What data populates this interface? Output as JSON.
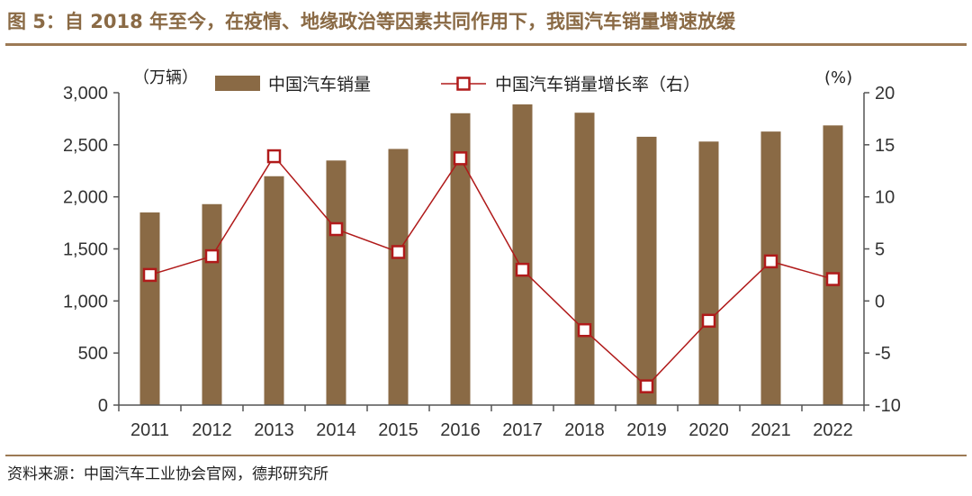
{
  "figure": {
    "title": "图 5：自 2018 年至今，在疫情、地缘政治等因素共同作用下，我国汽车销量增速放缓",
    "source": "资料来源：中国汽车工业协会官网，德邦研究所"
  },
  "colors": {
    "bar": "#8a6a45",
    "line": "#b01a1a",
    "marker_fill": "#ffffff",
    "axis": "#555555",
    "rule": "#9c7a55"
  },
  "chart_data": {
    "type": "bar",
    "categories": [
      "2011",
      "2012",
      "2013",
      "2014",
      "2015",
      "2016",
      "2017",
      "2018",
      "2019",
      "2020",
      "2021",
      "2022"
    ],
    "series": [
      {
        "name": "中国汽车销量",
        "type": "bar",
        "axis": "left",
        "values": [
          1850,
          1930,
          2198,
          2349,
          2460,
          2803,
          2888,
          2808,
          2577,
          2531,
          2627,
          2686
        ]
      },
      {
        "name": "中国汽车销量增长率（右）",
        "type": "line",
        "axis": "right",
        "values": [
          2.5,
          4.3,
          13.9,
          6.9,
          4.7,
          13.7,
          3.0,
          -2.8,
          -8.2,
          -1.9,
          3.8,
          2.1
        ]
      }
    ],
    "y_left": {
      "unit": "（万辆）",
      "range": [
        0,
        3000
      ],
      "ticks": [
        "3,000",
        "2,500",
        "2,000",
        "1,500",
        "1,000",
        "500",
        "0"
      ],
      "tick_values": [
        3000,
        2500,
        2000,
        1500,
        1000,
        500,
        0
      ]
    },
    "y_right": {
      "unit": "(%)",
      "range": [
        -10,
        20
      ],
      "ticks": [
        "20",
        "15",
        "10",
        "5",
        "0",
        "-5",
        "-10"
      ],
      "tick_values": [
        20,
        15,
        10,
        5,
        0,
        -5,
        -10
      ]
    },
    "grid": false,
    "legend": "top"
  }
}
